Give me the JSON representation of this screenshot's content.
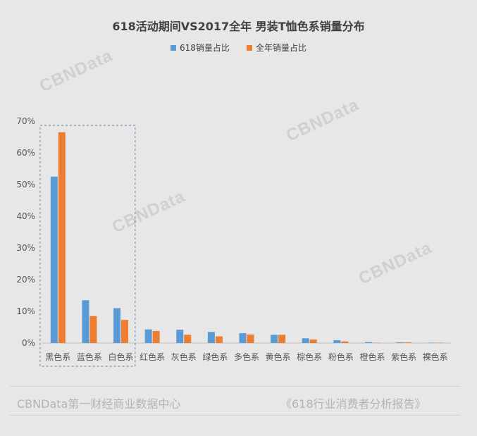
{
  "chart_data": {
    "type": "bar",
    "title": "618活动期间VS2017全年 男装T恤色系销量分布",
    "categories": [
      "黑色系",
      "蓝色系",
      "白色系",
      "红色系",
      "灰色系",
      "绿色系",
      "多色系",
      "黄色系",
      "棕色系",
      "粉色系",
      "橙色系",
      "紫色系",
      "裸色系"
    ],
    "series": [
      {
        "name": "618销量占比",
        "color": "#5b9bd5",
        "values": [
          52.5,
          13.5,
          11.0,
          4.3,
          4.2,
          3.5,
          3.1,
          2.6,
          1.5,
          0.9,
          0.3,
          0.2,
          0.1
        ]
      },
      {
        "name": "全年销量占比",
        "color": "#ed7d31",
        "values": [
          66.5,
          8.5,
          7.3,
          3.8,
          2.6,
          2.1,
          2.7,
          2.6,
          1.1,
          0.5,
          0.1,
          0.2,
          0.1
        ]
      }
    ],
    "yticks": [
      "0%",
      "10%",
      "20%",
      "30%",
      "40%",
      "50%",
      "60%",
      "70%"
    ],
    "ylim": [
      0,
      70
    ],
    "grid": false,
    "legend_position": "top-center",
    "highlight_categories": [
      "黑色系",
      "蓝色系",
      "白色系"
    ]
  },
  "watermark_text": "CBNData",
  "watermark_subtext": "第一财经商业数据中心",
  "footer": {
    "left": "CBNData第一财经商业数据中心",
    "right": "《618行业消费者分析报告》"
  }
}
